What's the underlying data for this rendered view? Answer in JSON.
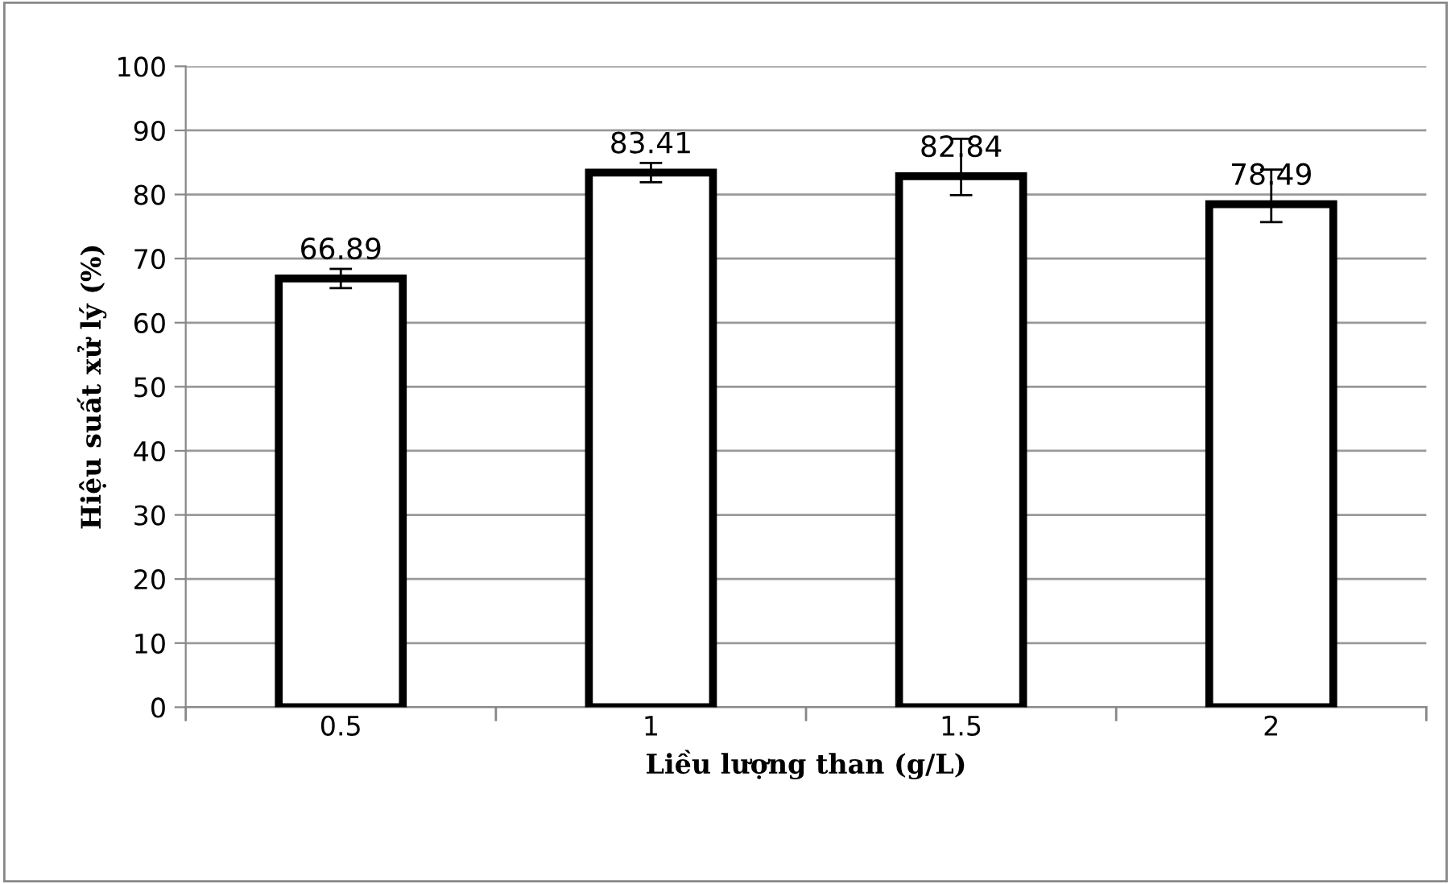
{
  "chart_data": {
    "type": "bar",
    "xlabel": "Liều lượng than (g/L)",
    "ylabel": "Hiệu suất xử lý (%)",
    "categories": [
      "0.5",
      "1",
      "1.5",
      "2"
    ],
    "values": [
      66.89,
      83.41,
      82.84,
      78.49
    ],
    "errors": [
      1.5,
      1.5,
      [
        79.9,
        88.7
      ],
      [
        75.7,
        83.9
      ]
    ],
    "color": "#ffffff",
    "data_labels": true,
    "ylim": [
      0,
      100
    ],
    "yticks": [
      0,
      10,
      20,
      30,
      40,
      50,
      60,
      70,
      80,
      90,
      100
    ],
    "grid": "y"
  }
}
